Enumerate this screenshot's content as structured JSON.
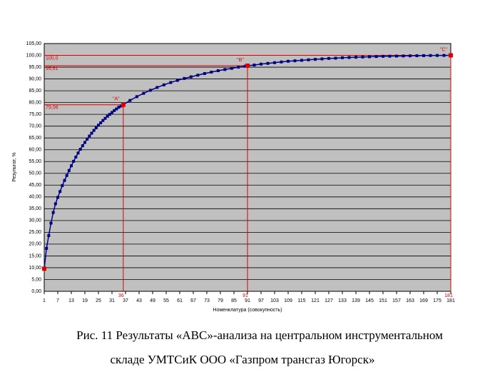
{
  "chart_data": {
    "type": "line",
    "y_label": "Результат, %",
    "x_label": "Номенклатура (совокупность)",
    "caption": [
      "Рис. 11  Результаты «АВС»-анализа на центральном инструментальном",
      "складе УМТСиК ООО «Газпром трансгаз Югорск»"
    ],
    "x": [
      1,
      2,
      3,
      4,
      5,
      6,
      7,
      8,
      9,
      10,
      11,
      12,
      13,
      14,
      15,
      16,
      17,
      18,
      19,
      20,
      21,
      22,
      23,
      24,
      25,
      26,
      27,
      28,
      29,
      30,
      31,
      32,
      33,
      34,
      35,
      36,
      39,
      42,
      45,
      48,
      51,
      54,
      57,
      60,
      63,
      66,
      69,
      72,
      75,
      78,
      81,
      84,
      87,
      90,
      91,
      94,
      97,
      100,
      103,
      106,
      109,
      112,
      115,
      118,
      121,
      124,
      127,
      130,
      133,
      136,
      139,
      142,
      145,
      148,
      151,
      154,
      157,
      160,
      163,
      166,
      169,
      172,
      175,
      178,
      181
    ],
    "series": [
      {
        "name": "Результат",
        "color": "#000080",
        "values": [
          9.6,
          18.2,
          23.6,
          28.9,
          33.4,
          37.1,
          39.8,
          42.3,
          44.8,
          47.0,
          49.1,
          51.2,
          53.2,
          55.1,
          56.9,
          58.6,
          60.2,
          61.7,
          63.1,
          64.5,
          65.8,
          67.0,
          68.2,
          69.3,
          70.4,
          71.4,
          72.4,
          73.3,
          74.2,
          75.0,
          75.8,
          76.6,
          77.3,
          78.0,
          78.5,
          79.06,
          80.9,
          82.5,
          83.9,
          85.2,
          86.4,
          87.5,
          88.5,
          89.4,
          90.2,
          90.9,
          91.6,
          92.3,
          92.9,
          93.5,
          94.0,
          94.5,
          95.0,
          95.4,
          95.61,
          95.9,
          96.3,
          96.6,
          96.9,
          97.2,
          97.5,
          97.7,
          97.9,
          98.1,
          98.3,
          98.5,
          98.7,
          98.8,
          99.0,
          99.1,
          99.2,
          99.3,
          99.4,
          99.5,
          99.6,
          99.65,
          99.7,
          99.75,
          99.8,
          99.85,
          99.9,
          99.93,
          99.96,
          99.98,
          100
        ]
      }
    ],
    "highlight_color": "#e00000",
    "start_point": {
      "x": 1,
      "y": 9.6
    },
    "annotations": [
      {
        "label": "\"А\"",
        "x": 36,
        "y": 79.06,
        "x_label": "36",
        "y_label": "79,06"
      },
      {
        "label": "\"В\"",
        "x": 91,
        "y": 95.61,
        "x_label": "91",
        "y_label": "95,61"
      },
      {
        "label": "\"С\"",
        "x": 181,
        "y": 100,
        "x_label": "181",
        "y_label": "100,0"
      }
    ],
    "xlim": [
      1,
      181
    ],
    "xticks": [
      1,
      7,
      13,
      19,
      25,
      31,
      37,
      43,
      49,
      55,
      61,
      67,
      73,
      79,
      85,
      91,
      97,
      103,
      109,
      115,
      121,
      127,
      133,
      139,
      145,
      151,
      157,
      163,
      169,
      175,
      181
    ],
    "ylim": [
      0,
      105
    ],
    "yticks": [
      {
        "value": 0,
        "label": "0,00"
      },
      {
        "value": 5,
        "label": "5,00"
      },
      {
        "value": 10,
        "label": "10,00"
      },
      {
        "value": 15,
        "label": "15,00"
      },
      {
        "value": 20,
        "label": "20,00"
      },
      {
        "value": 25,
        "label": "25,00"
      },
      {
        "value": 30,
        "label": "30,00"
      },
      {
        "value": 35,
        "label": "35,00"
      },
      {
        "value": 40,
        "label": "40,00"
      },
      {
        "value": 45,
        "label": "45,00"
      },
      {
        "value": 50,
        "label": "50,00"
      },
      {
        "value": 55,
        "label": "55,00"
      },
      {
        "value": 60,
        "label": "60,00"
      },
      {
        "value": 65,
        "label": "65,00"
      },
      {
        "value": 70,
        "label": "70,00"
      },
      {
        "value": 75,
        "label": "75,00"
      },
      {
        "value": 80,
        "label": "80,00"
      },
      {
        "value": 85,
        "label": "85,00"
      },
      {
        "value": 90,
        "label": "90,00"
      },
      {
        "value": 95,
        "label": "95,00"
      },
      {
        "value": 100,
        "label": "100,00"
      },
      {
        "value": 105,
        "label": "105,00"
      }
    ],
    "grid": true,
    "plot_background": "#c0c0c0"
  }
}
